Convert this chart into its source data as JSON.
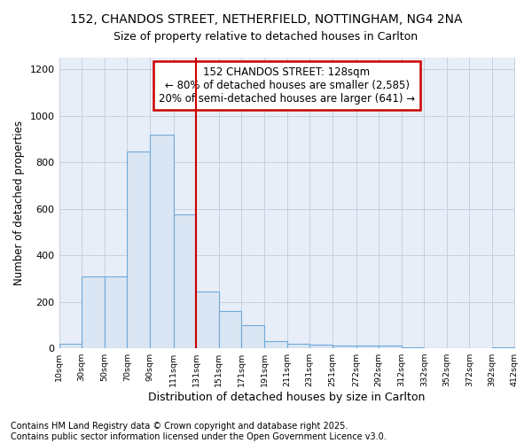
{
  "title_line1": "152, CHANDOS STREET, NETHERFIELD, NOTTINGHAM, NG4 2NA",
  "title_line2": "Size of property relative to detached houses in Carlton",
  "xlabel": "Distribution of detached houses by size in Carlton",
  "ylabel": "Number of detached properties",
  "bar_edges": [
    10,
    30,
    50,
    70,
    90,
    111,
    131,
    151,
    171,
    191,
    211,
    231,
    251,
    272,
    292,
    312,
    332,
    352,
    372,
    392,
    412
  ],
  "bar_heights": [
    20,
    310,
    310,
    845,
    920,
    575,
    245,
    160,
    100,
    30,
    20,
    15,
    10,
    10,
    10,
    5,
    0,
    0,
    0,
    5
  ],
  "bar_color": "#dae6f3",
  "bar_edgecolor": "#6fa8d8",
  "bar_linewidth": 0.8,
  "vline_x": 131,
  "vline_color": "#cc0000",
  "vline_linewidth": 1.5,
  "annotation_text1": "152 CHANDOS STREET: 128sqm",
  "annotation_text2": "← 80% of detached houses are smaller (2,585)",
  "annotation_text3": "20% of semi-detached houses are larger (641) →",
  "annotation_box_color": "#cc0000",
  "annotation_box_facecolor": "white",
  "annotation_fontsize": 8.5,
  "ylim": [
    0,
    1250
  ],
  "yticks": [
    0,
    200,
    400,
    600,
    800,
    1000,
    1200
  ],
  "xtick_labels": [
    "10sqm",
    "30sqm",
    "50sqm",
    "70sqm",
    "90sqm",
    "111sqm",
    "131sqm",
    "151sqm",
    "171sqm",
    "191sqm",
    "211sqm",
    "231sqm",
    "251sqm",
    "272sqm",
    "292sqm",
    "312sqm",
    "332sqm",
    "352sqm",
    "372sqm",
    "392sqm",
    "412sqm"
  ],
  "background_color": "#e8eef8",
  "grid_color": "#c5d0e0",
  "footnote_line1": "Contains HM Land Registry data © Crown copyright and database right 2025.",
  "footnote_line2": "Contains public sector information licensed under the Open Government Licence v3.0.",
  "footnote_fontsize": 7,
  "title1_fontsize": 10,
  "title2_fontsize": 9,
  "xlabel_fontsize": 9,
  "ylabel_fontsize": 8.5
}
